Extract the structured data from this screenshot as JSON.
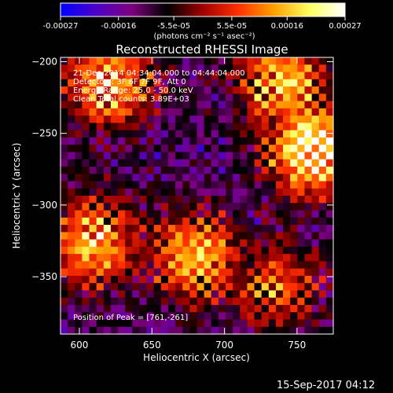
{
  "colorbar": {
    "ticks": [
      "-0.00027",
      "-0.00016",
      "-5.5e-05",
      "5.5e-05",
      "0.00016",
      "0.00027"
    ],
    "tick_values": [
      -0.00027,
      -0.00016,
      -5.5e-05,
      5.5e-05,
      0.00016,
      0.00027
    ],
    "range": [
      -0.00027,
      0.00027
    ],
    "unit_label": "(photons cm⁻² s⁻¹ asec⁻²)",
    "colors": [
      "#0000ff",
      "#4b00c8",
      "#7f007f",
      "#000000",
      "#a00000",
      "#ff3000",
      "#ffa000",
      "#ffff60",
      "#ffffff"
    ]
  },
  "chart_data": {
    "type": "heatmap",
    "title": "Reconstructed RHESSI Image",
    "xlabel": "Heliocentric X (arcsec)",
    "ylabel": "Heliocentric Y (arcsec)",
    "xlim": [
      587,
      775
    ],
    "ylim": [
      -390,
      -197
    ],
    "x_ticks": [
      600,
      650,
      700,
      750
    ],
    "y_ticks": [
      -200,
      -250,
      -300,
      -350
    ],
    "x_tick_labels": [
      "600",
      "650",
      "700",
      "750"
    ],
    "y_tick_labels": [
      "−200",
      "−250",
      "−300",
      "−350"
    ],
    "annotations": [
      "21-Dec-2014 04:34:04.000 to 04:44:04.000",
      "Detectors: 3F 6F 7F 9F, Att 0",
      "Energy Range: 25.0 - 50.0 keV",
      "Clean      Total counts: 3.89E+03"
    ],
    "peak_label": "Position of Peak = [761,-261]",
    "peak_position": [
      761,
      -261
    ],
    "hot_regions": [
      {
        "x": 761,
        "y": -261,
        "level": "peak"
      },
      {
        "x": 680,
        "y": -335,
        "level": "high"
      },
      {
        "x": 610,
        "y": -325,
        "level": "high"
      },
      {
        "x": 620,
        "y": -215,
        "level": "high"
      },
      {
        "x": 740,
        "y": -215,
        "level": "high"
      },
      {
        "x": 735,
        "y": -355,
        "level": "medium"
      }
    ],
    "grid": false
  },
  "footer": {
    "timestamp": "15-Sep-2017 04:12"
  }
}
